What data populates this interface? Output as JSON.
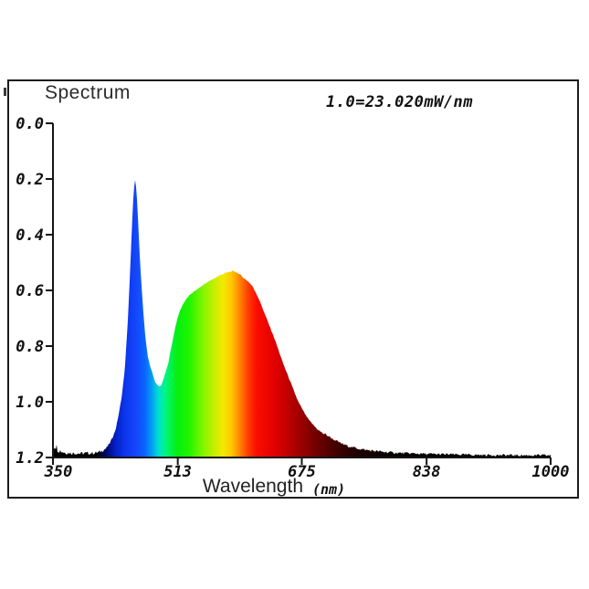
{
  "chart_data": {
    "type": "area",
    "title": "Spectrum",
    "scale_note": "1.0=23.020mW/nm",
    "xlabel_main": "Wavelength",
    "xlabel_unit": "(nm)",
    "xlabel": "Wavelength (nm)",
    "x_tick_labels": [
      "350",
      "513",
      "675",
      "838",
      "1000"
    ],
    "x_tick_values": [
      350,
      513,
      675,
      838,
      1000
    ],
    "y_tick_labels": [
      "0.0",
      "0.2",
      "0.4",
      "0.6",
      "0.8",
      "1.0",
      "1.2"
    ],
    "y_tick_values": [
      0.0,
      0.2,
      0.4,
      0.6,
      0.8,
      1.0,
      1.2
    ],
    "xlim": [
      350,
      1000
    ],
    "ylim": [
      0,
      1.2
    ],
    "grid": false,
    "legend": "none",
    "features": {
      "blue_led_peak": {
        "nm": 457,
        "value": 1.0
      },
      "valley": {
        "nm": 488,
        "value": 0.253
      },
      "phosphor_peak": {
        "nm": 585,
        "value": 0.667
      }
    },
    "series": [
      {
        "name": "normalized spectral power",
        "points": [
          [
            350,
            0.022
          ],
          [
            353,
            0.03
          ],
          [
            356,
            0.018
          ],
          [
            360,
            0.013
          ],
          [
            365,
            0.011
          ],
          [
            370,
            0.01
          ],
          [
            375,
            0.009
          ],
          [
            380,
            0.009
          ],
          [
            385,
            0.008
          ],
          [
            390,
            0.008
          ],
          [
            395,
            0.009
          ],
          [
            400,
            0.009
          ],
          [
            405,
            0.01
          ],
          [
            410,
            0.012
          ],
          [
            415,
            0.02
          ],
          [
            420,
            0.03
          ],
          [
            425,
            0.05
          ],
          [
            428,
            0.07
          ],
          [
            432,
            0.1
          ],
          [
            436,
            0.155
          ],
          [
            440,
            0.22
          ],
          [
            444,
            0.32
          ],
          [
            448,
            0.5
          ],
          [
            451,
            0.68
          ],
          [
            453,
            0.82
          ],
          [
            455,
            0.93
          ],
          [
            457,
            1.0
          ],
          [
            459,
            0.96
          ],
          [
            461,
            0.86
          ],
          [
            463,
            0.74
          ],
          [
            465,
            0.64
          ],
          [
            468,
            0.52
          ],
          [
            471,
            0.42
          ],
          [
            474,
            0.36
          ],
          [
            477,
            0.325
          ],
          [
            480,
            0.3
          ],
          [
            483,
            0.272
          ],
          [
            486,
            0.258
          ],
          [
            489,
            0.253
          ],
          [
            492,
            0.26
          ],
          [
            495,
            0.285
          ],
          [
            500,
            0.33
          ],
          [
            505,
            0.4
          ],
          [
            510,
            0.47
          ],
          [
            515,
            0.52
          ],
          [
            520,
            0.55
          ],
          [
            525,
            0.57
          ],
          [
            530,
            0.585
          ],
          [
            535,
            0.595
          ],
          [
            540,
            0.605
          ],
          [
            545,
            0.615
          ],
          [
            550,
            0.625
          ],
          [
            555,
            0.632
          ],
          [
            560,
            0.64
          ],
          [
            565,
            0.648
          ],
          [
            570,
            0.655
          ],
          [
            575,
            0.66
          ],
          [
            580,
            0.664
          ],
          [
            585,
            0.667
          ],
          [
            590,
            0.663
          ],
          [
            595,
            0.653
          ],
          [
            600,
            0.64
          ],
          [
            605,
            0.63
          ],
          [
            610,
            0.615
          ],
          [
            615,
            0.59
          ],
          [
            620,
            0.56
          ],
          [
            625,
            0.525
          ],
          [
            630,
            0.49
          ],
          [
            635,
            0.455
          ],
          [
            640,
            0.42
          ],
          [
            645,
            0.38
          ],
          [
            650,
            0.34
          ],
          [
            655,
            0.305
          ],
          [
            660,
            0.27
          ],
          [
            665,
            0.235
          ],
          [
            670,
            0.2
          ],
          [
            675,
            0.175
          ],
          [
            680,
            0.15
          ],
          [
            685,
            0.13
          ],
          [
            690,
            0.115
          ],
          [
            695,
            0.1
          ],
          [
            700,
            0.09
          ],
          [
            705,
            0.08
          ],
          [
            710,
            0.072
          ],
          [
            715,
            0.063
          ],
          [
            720,
            0.055
          ],
          [
            725,
            0.048
          ],
          [
            730,
            0.042
          ],
          [
            740,
            0.033
          ],
          [
            750,
            0.027
          ],
          [
            760,
            0.022
          ],
          [
            770,
            0.019
          ],
          [
            780,
            0.016
          ],
          [
            790,
            0.014
          ],
          [
            800,
            0.012
          ],
          [
            820,
            0.01
          ],
          [
            840,
            0.008
          ],
          [
            860,
            0.007
          ],
          [
            880,
            0.006
          ],
          [
            900,
            0.005
          ],
          [
            930,
            0.004
          ],
          [
            960,
            0.0035
          ],
          [
            1000,
            0.003
          ]
        ]
      }
    ],
    "gradient_stops": [
      {
        "nm": 350,
        "color": "#000000"
      },
      {
        "nm": 408,
        "color": "#000005"
      },
      {
        "nm": 420,
        "color": "#000870"
      },
      {
        "nm": 432,
        "color": "#0520c8"
      },
      {
        "nm": 446,
        "color": "#0d38f0"
      },
      {
        "nm": 458,
        "color": "#1545fa"
      },
      {
        "nm": 470,
        "color": "#0a64ff"
      },
      {
        "nm": 480,
        "color": "#00a6f0"
      },
      {
        "nm": 488,
        "color": "#00e0d0"
      },
      {
        "nm": 497,
        "color": "#00f580"
      },
      {
        "nm": 512,
        "color": "#05ef10"
      },
      {
        "nm": 528,
        "color": "#20f500"
      },
      {
        "nm": 545,
        "color": "#7df500"
      },
      {
        "nm": 560,
        "color": "#c3ef00"
      },
      {
        "nm": 572,
        "color": "#f2ea00"
      },
      {
        "nm": 583,
        "color": "#ffc800"
      },
      {
        "nm": 593,
        "color": "#ff8a00"
      },
      {
        "nm": 604,
        "color": "#ff4200"
      },
      {
        "nm": 616,
        "color": "#fb0d00"
      },
      {
        "nm": 640,
        "color": "#e00000"
      },
      {
        "nm": 665,
        "color": "#ae0000"
      },
      {
        "nm": 690,
        "color": "#7a0000"
      },
      {
        "nm": 715,
        "color": "#4a0000"
      },
      {
        "nm": 745,
        "color": "#200000"
      },
      {
        "nm": 790,
        "color": "#080000"
      },
      {
        "nm": 850,
        "color": "#000000"
      },
      {
        "nm": 1000,
        "color": "#000000"
      }
    ],
    "colors": {
      "background": "#ffffff",
      "frame": "#1c1c1c",
      "axis": "#151515",
      "tick_label": "#101010",
      "title_text": "#2b2b2b"
    }
  }
}
